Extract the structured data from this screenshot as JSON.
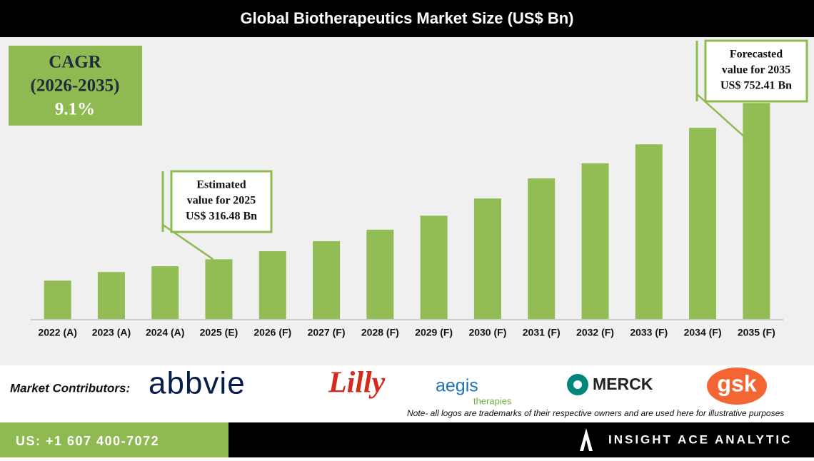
{
  "chart_data": {
    "type": "bar",
    "title": "Global Biotherapeutics Market Size (US$ Bn)",
    "categories": [
      "2022 (A)",
      "2023 (A)",
      "2024 (A)",
      "2025 (E)",
      "2026 (F)",
      "2027 (F)",
      "2028 (F)",
      "2029 (F)",
      "2030 (F)",
      "2031 (F)",
      "2032 (F)",
      "2033 (F)",
      "2034 (F)",
      "2035 (F)"
    ],
    "values": [
      257,
      281,
      297,
      316.48,
      339,
      367,
      399,
      438,
      486,
      542,
      584,
      637,
      683,
      752.41
    ],
    "color": "#92bd55",
    "ylim": [
      150,
      930
    ],
    "annotations": [
      {
        "category": 3,
        "lines": [
          "Estimated",
          "value for 2025",
          "US$ 316.48 Bn"
        ]
      },
      {
        "category": 13,
        "lines": [
          "Forecasted",
          "value for 2035",
          "US$ 752.41 Bn"
        ]
      }
    ]
  },
  "cagr": {
    "label": "CAGR",
    "period": "(2026-2035)",
    "value": "9.1%"
  },
  "contributors": {
    "label": "Market Contributors:",
    "logos": [
      "abbvie",
      "Lilly",
      "aegis",
      "therapies",
      "MERCK",
      "gsk"
    ],
    "note": "Note- all logos are trademarks of their respective owners and are used here for illustrative purposes"
  },
  "footer": {
    "phone": "US: +1 607 400-7072",
    "brand": "INSIGHT ACE ANALYTIC"
  }
}
